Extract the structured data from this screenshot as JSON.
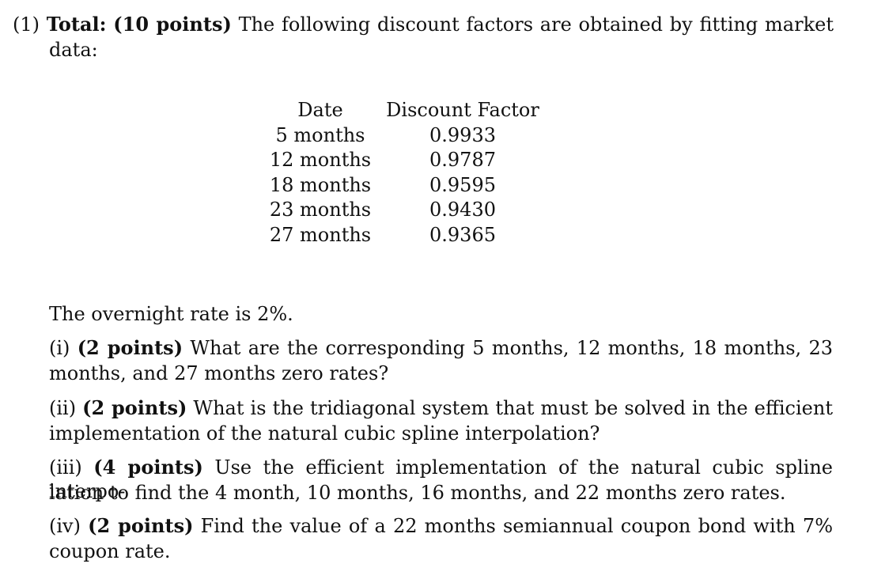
{
  "problem": {
    "number": "(1)",
    "total_label": "Total:",
    "points": "(10 points)",
    "intro_line1": "The following discount factors are obtained by fitting market",
    "intro_line2": "data:"
  },
  "table": {
    "header_date": "Date",
    "header_factor": "Discount Factor",
    "rows": [
      {
        "date": "5 months",
        "factor": "0.9933"
      },
      {
        "date": "12 months",
        "factor": "0.9787"
      },
      {
        "date": "18 months",
        "factor": "0.9595"
      },
      {
        "date": "23 months",
        "factor": "0.9430"
      },
      {
        "date": "27 months",
        "factor": "0.9365"
      }
    ]
  },
  "overnight": "The overnight rate is 2%.",
  "parts": [
    {
      "label": "(i)",
      "points": "(2 points)",
      "line1": "What are the corresponding 5 months, 12 months, 18 months, 23",
      "line2": "months, and 27 months zero rates?"
    },
    {
      "label": "(ii)",
      "points": "(2 points)",
      "line1": "What is the tridiagonal system that must be solved in the efficient",
      "line2": "implementation of the natural cubic spline interpolation?"
    },
    {
      "label": "(iii)",
      "points": "(4 points)",
      "line1": "Use the efficient implementation of the natural cubic spline interpo-",
      "line2": "lation to find the 4 month, 10 months, 16 months, and 22 months zero rates."
    },
    {
      "label": "(iv)",
      "points": "(2 points)",
      "line1": "Find the value of a 22 months semiannual coupon bond with 7%",
      "line2": "coupon rate."
    }
  ]
}
